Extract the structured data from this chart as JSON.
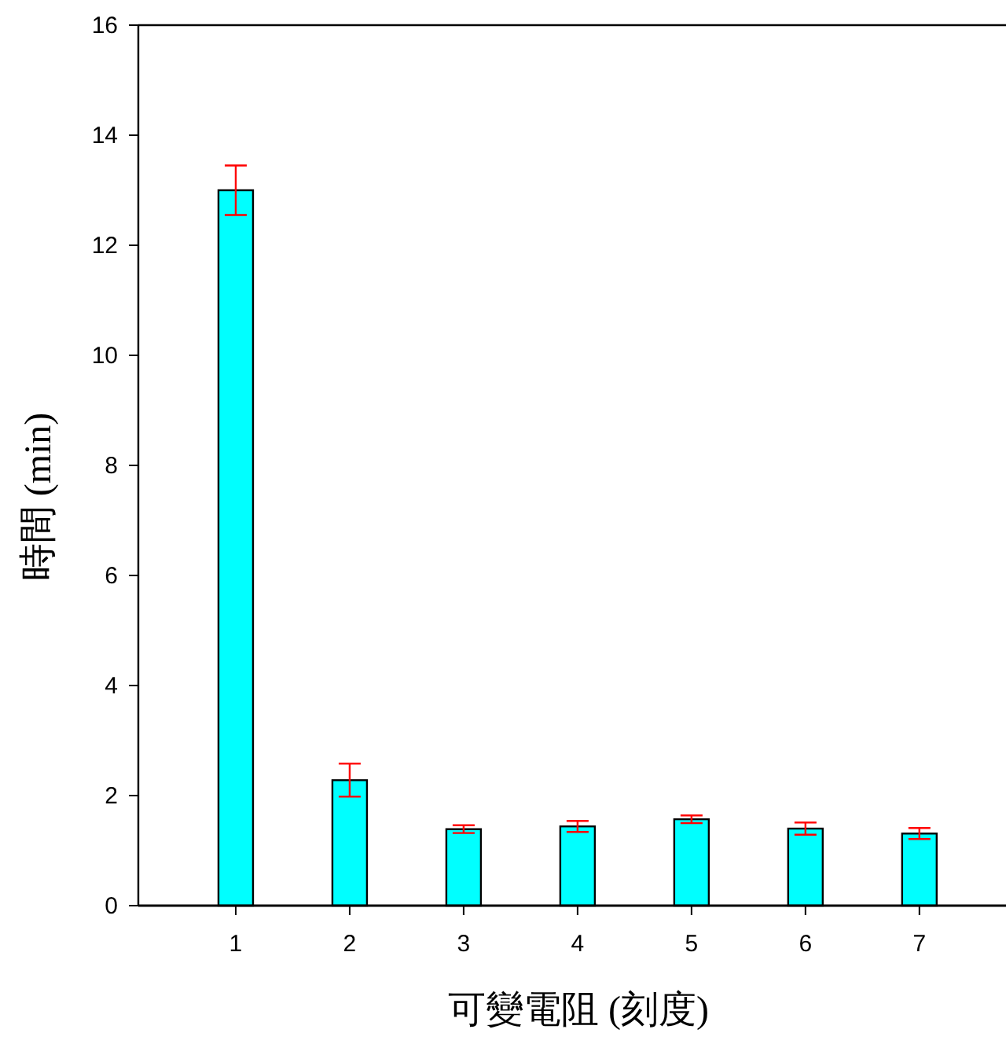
{
  "chart_data": {
    "type": "bar",
    "xlabel": "可變電阻 (刻度)",
    "ylabel": "時間 (min)",
    "categories": [
      "1",
      "2",
      "3",
      "4",
      "5",
      "6",
      "7"
    ],
    "values": [
      13.0,
      2.28,
      1.39,
      1.44,
      1.57,
      1.4,
      1.31
    ],
    "errors": [
      0.45,
      0.3,
      0.07,
      0.1,
      0.07,
      0.11,
      0.1
    ],
    "color": "#00ffff",
    "ylim": [
      0,
      16
    ],
    "yticks": [
      0,
      2,
      4,
      6,
      8,
      10,
      12,
      14,
      16
    ]
  }
}
